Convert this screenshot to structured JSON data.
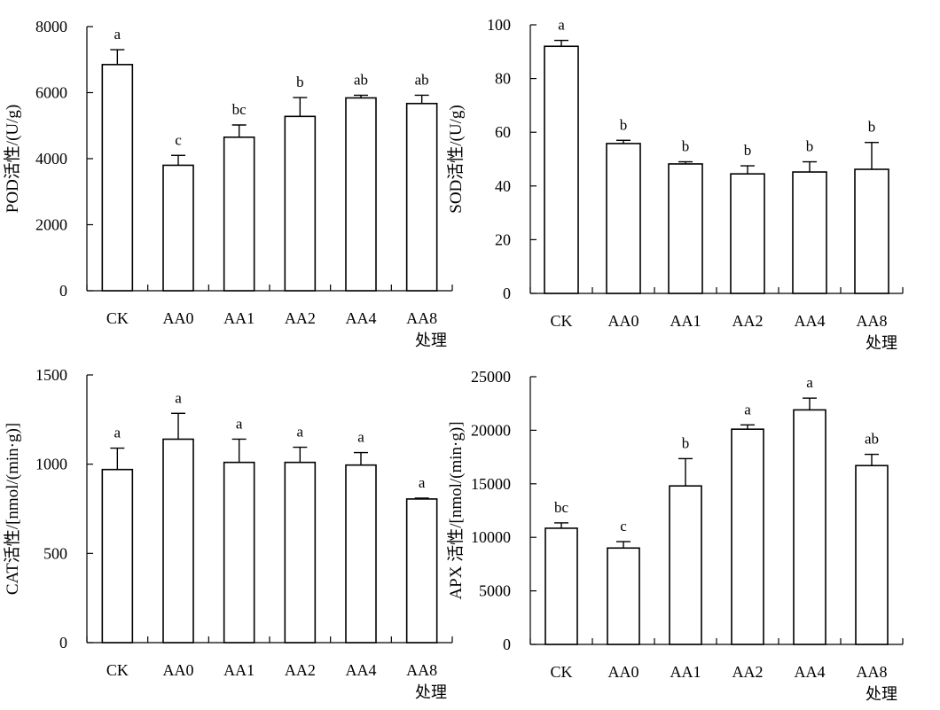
{
  "chart_data": [
    {
      "type": "bar",
      "ylabel": "POD活性/(U/g)",
      "xlabel": "处理",
      "ylim": [
        0,
        8000
      ],
      "yticks": [
        0,
        2000,
        4000,
        6000,
        8000
      ],
      "categories": [
        "CK",
        "AA0",
        "AA1",
        "AA2",
        "AA4",
        "AA8"
      ],
      "values": [
        6850,
        3800,
        4650,
        5280,
        5840,
        5670
      ],
      "errors": [
        450,
        300,
        370,
        570,
        80,
        250
      ],
      "labels": [
        "a",
        "c",
        "bc",
        "b",
        "ab",
        "ab"
      ]
    },
    {
      "type": "bar",
      "ylabel": "SOD活性/(U/g)",
      "xlabel": "处理",
      "ylim": [
        0,
        100
      ],
      "yticks": [
        0,
        20,
        40,
        60,
        80,
        100
      ],
      "categories": [
        "CK",
        "AA0",
        "AA1",
        "AA2",
        "AA4",
        "AA8"
      ],
      "values": [
        92,
        55.8,
        48.2,
        44.5,
        45.2,
        46.2
      ],
      "errors": [
        2.2,
        1.2,
        0.8,
        3,
        3.8,
        10
      ],
      "labels": [
        "a",
        "b",
        "b",
        "b",
        "b",
        "b"
      ]
    },
    {
      "type": "bar",
      "ylabel": "CAT活性/[nmol/(min·g)]",
      "xlabel": "处理",
      "ylim": [
        0,
        1500
      ],
      "yticks": [
        0,
        500,
        1000,
        1500
      ],
      "categories": [
        "CK",
        "AA0",
        "AA1",
        "AA2",
        "AA4",
        "AA8"
      ],
      "values": [
        970,
        1140,
        1010,
        1010,
        995,
        805
      ],
      "errors": [
        120,
        145,
        130,
        85,
        70,
        5
      ],
      "labels": [
        "a",
        "a",
        "a",
        "a",
        "a",
        "a"
      ]
    },
    {
      "type": "bar",
      "ylabel": "APX 活性/[nmol/(min·g)]",
      "xlabel": "处理",
      "ylim": [
        0,
        25000
      ],
      "yticks": [
        0,
        5000,
        10000,
        15000,
        20000,
        25000
      ],
      "categories": [
        "CK",
        "AA0",
        "AA1",
        "AA2",
        "AA4",
        "AA8"
      ],
      "values": [
        10850,
        9000,
        14800,
        20100,
        21900,
        16700
      ],
      "errors": [
        500,
        600,
        2550,
        400,
        1100,
        1050
      ],
      "labels": [
        "bc",
        "c",
        "b",
        "a",
        "a",
        "ab"
      ]
    }
  ]
}
